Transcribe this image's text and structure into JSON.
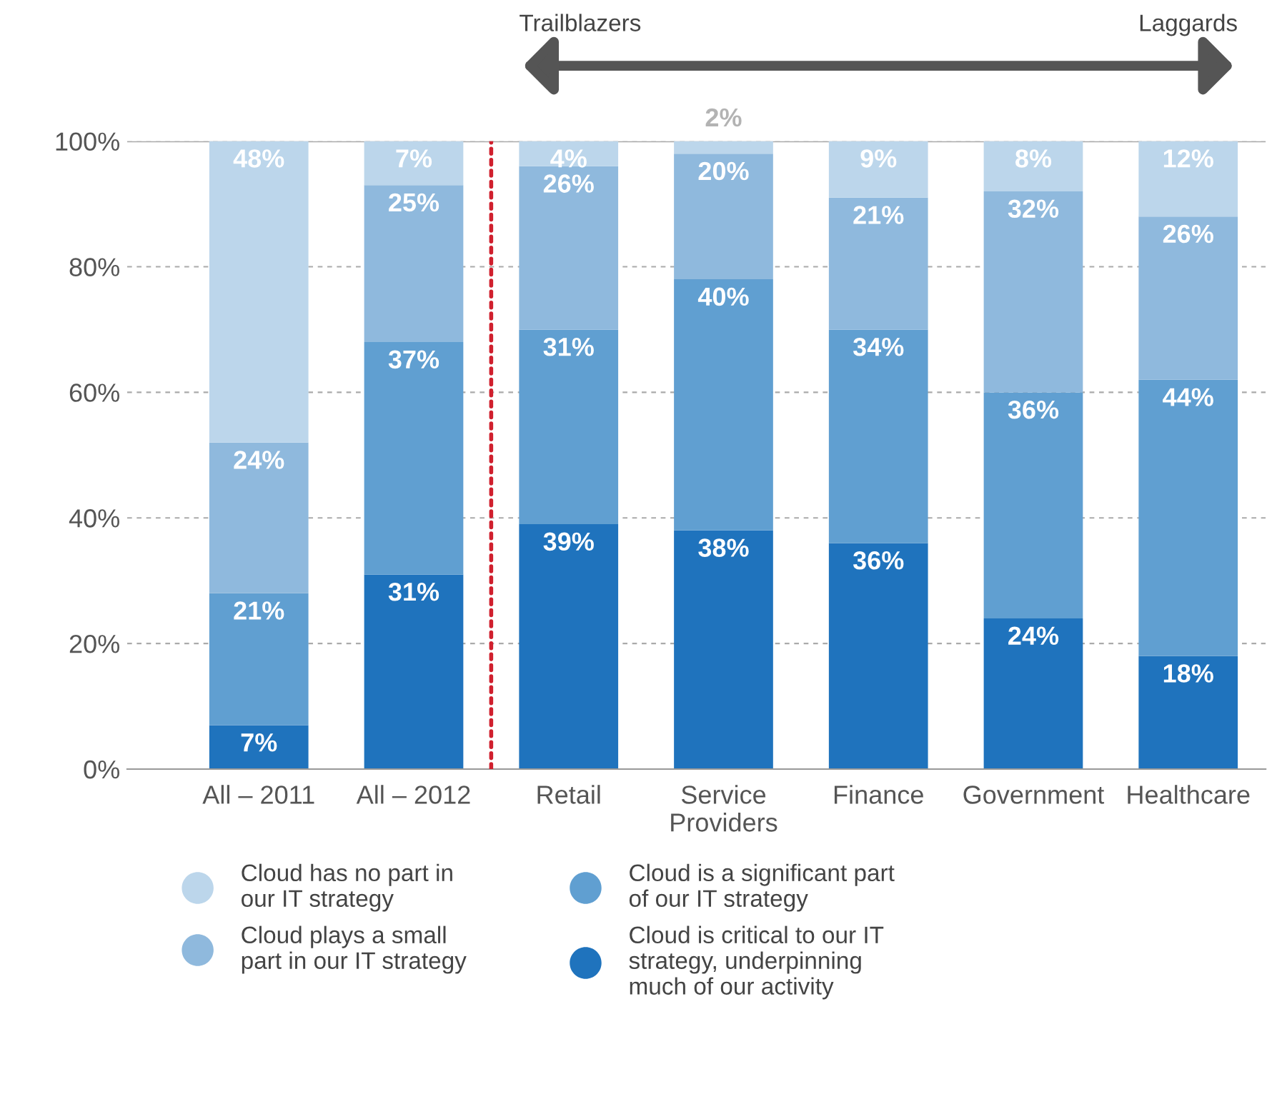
{
  "chart_data": {
    "type": "bar",
    "stacked": true,
    "categories": [
      "All – 2011",
      "All – 2012",
      "Retail",
      "Service\nProviders",
      "Finance",
      "Government",
      "Healthcare"
    ],
    "series": [
      {
        "name": "Cloud is critical to our IT\nstrategy, underpinning\nmuch of our activity",
        "color": "#1f73bd",
        "values": [
          7,
          31,
          39,
          38,
          36,
          24,
          18
        ],
        "value_labels": [
          "7%",
          "31%",
          "39%",
          "38%",
          "36%",
          "24%",
          "18%"
        ]
      },
      {
        "name": "Cloud is a significant part\nof our IT strategy",
        "color": "#609fd1",
        "values": [
          21,
          37,
          31,
          40,
          34,
          36,
          44
        ],
        "value_labels": [
          "21%",
          "37%",
          "31%",
          "40%",
          "34%",
          "36%",
          "44%"
        ]
      },
      {
        "name": "Cloud plays a small\npart in our IT strategy",
        "color": "#8fb9dd",
        "values": [
          24,
          25,
          26,
          20,
          21,
          32,
          26
        ],
        "value_labels": [
          "24%",
          "25%",
          "26%",
          "20%",
          "21%",
          "32%",
          "26%"
        ]
      },
      {
        "name": "Cloud has no part in\nour IT strategy",
        "color": "#bcd6eb",
        "values": [
          48,
          7,
          4,
          2,
          9,
          8,
          12
        ],
        "value_labels": [
          "48%",
          "7%",
          "4%",
          "2%",
          "9%",
          "8%",
          "12%"
        ]
      }
    ],
    "ylim": [
      0,
      100
    ],
    "yticks": [
      {
        "value": 0,
        "label": "0%"
      },
      {
        "value": 20,
        "label": "20%"
      },
      {
        "value": 40,
        "label": "40%"
      },
      {
        "value": 60,
        "label": "60%"
      },
      {
        "value": 80,
        "label": "80%"
      },
      {
        "value": 100,
        "label": "100%"
      }
    ],
    "grid": "y",
    "legend": "bottom",
    "annotations": [
      "Trailblazers",
      "Laggards"
    ]
  }
}
